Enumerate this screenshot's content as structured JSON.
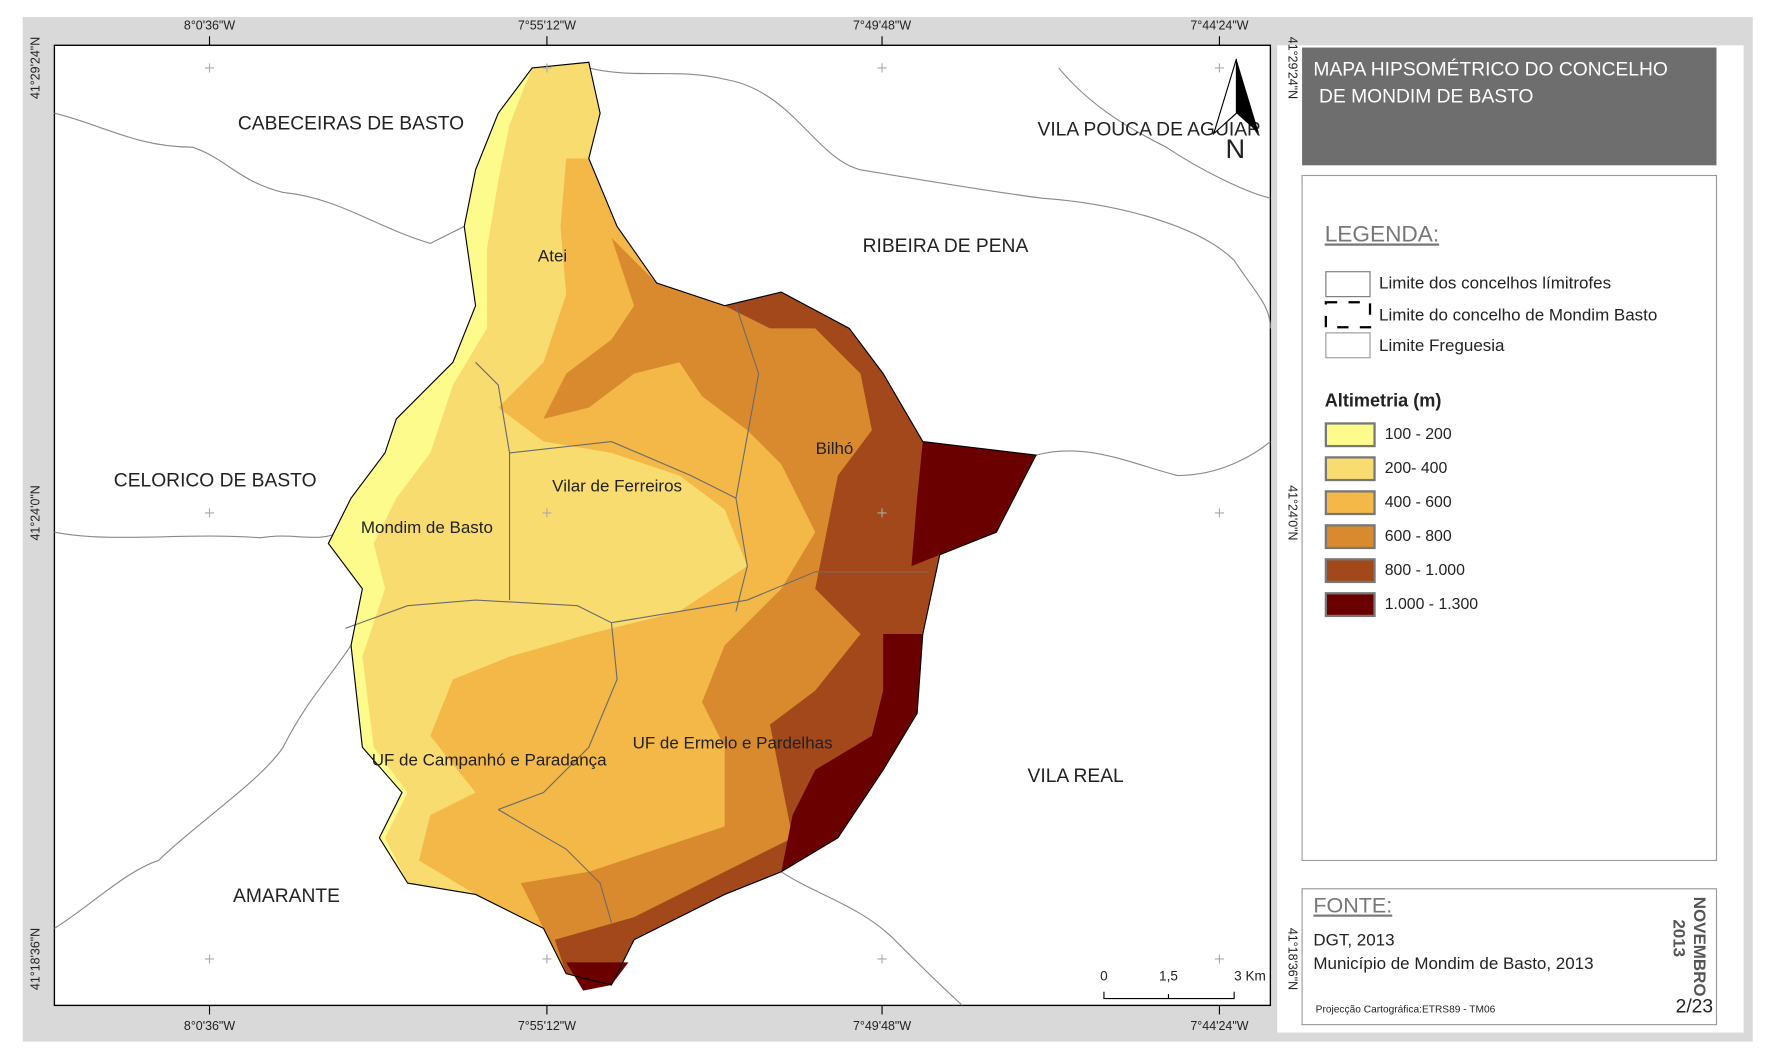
{
  "title": [
    "MAPA HIPSOMÉTRICO DO CONCELHO",
    "DE MONDIM DE BASTO"
  ],
  "map": {
    "lon_ticks": [
      "8°0'36\"W",
      "7°55'12\"W",
      "7°49'48\"W",
      "7°44'24\"W"
    ],
    "lat_ticks": [
      "41°29'24\"N",
      "41°24'0\"N",
      "41°18'36\"N"
    ],
    "municipalities": [
      "CABECEIRAS DE BASTO",
      "VILA POUCA DE AGUIAR",
      "RIBEIRA DE PENA",
      "CELORICO DE BASTO",
      "VILA REAL",
      "AMARANTE"
    ],
    "parishes": [
      "Atei",
      "Vilar de Ferreiros",
      "Bilhó",
      "Mondim de Basto",
      "UF de Campanhó e Paradança",
      "UF de Ermelo e Pardelhas"
    ],
    "north": "N",
    "scale": [
      "0",
      "1,5",
      "3 Km"
    ]
  },
  "legend": {
    "heading": "LEGENDA:",
    "boundaries": [
      "Limite dos concelhos límitrofes",
      "Limite do concelho de Mondim Basto",
      "Limite Freguesia"
    ],
    "altimetry_title": "Altimetria (m)",
    "classes": [
      {
        "label": "100 - 200",
        "color": "#fdfb8c"
      },
      {
        "label": "200- 400",
        "color": "#f9dc70"
      },
      {
        "label": "400 - 600",
        "color": "#f3b848"
      },
      {
        "label": "600 - 800",
        "color": "#d98a2e"
      },
      {
        "label": "800 - 1.000",
        "color": "#a3481a"
      },
      {
        "label": "1.000 - 1.300",
        "color": "#6b0000"
      }
    ]
  },
  "source": {
    "heading": "FONTE:",
    "lines": [
      "DGT, 2013",
      "Município de Mondim de Basto, 2013"
    ],
    "projection": "Projecção Cartográfica:ETRS89 - TM06",
    "date": [
      "NOVEMBRO",
      "2013"
    ],
    "page": "2/23"
  }
}
